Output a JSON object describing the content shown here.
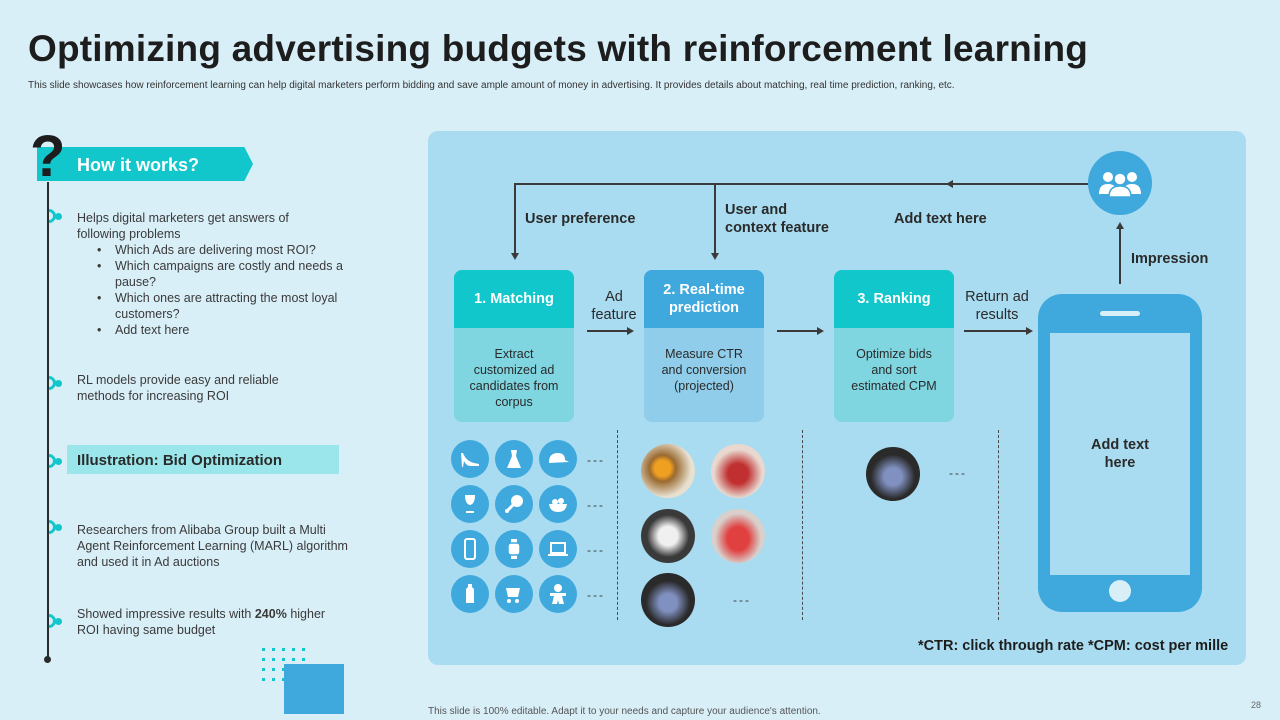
{
  "title": "Optimizing advertising budgets with reinforcement learning",
  "subtitle": "This slide showcases how reinforcement learning can help digital marketers perform bidding and save ample amount of money in advertising. It provides details about matching, real time prediction, ranking, etc.",
  "left": {
    "heading": "How it works?",
    "item1_intro": "Helps digital marketers get answers of following problems",
    "bullets": [
      "Which Ads are delivering  most ROI?",
      "Which campaigns are costly and needs a pause?",
      "Which ones are attracting the most loyal customers?",
      "Add text here"
    ],
    "item2": "RL models provide  easy and reliable methods for increasing ROI",
    "illustration_label": "Illustration:  Bid Optimization",
    "item3": "Researchers from Alibaba Group built a Multi Agent Reinforcement  Learning (MARL) algorithm and used it in Ad auctions",
    "item4_pre": "Showed impressive  results with ",
    "item4_bold": "240%",
    "item4_post": " higher ROI having  same budget"
  },
  "diagram": {
    "user_preference": "User preference",
    "user_context_1": "User and",
    "user_context_2": "context feature",
    "add_text_top": "Add  text here",
    "impression": "Impression",
    "ad_feature_1": "Ad",
    "ad_feature_2": "feature",
    "return_ad_1": "Return ad",
    "return_ad_2": "results",
    "cards": [
      {
        "head": "1. Matching",
        "body": [
          "Extract",
          "customized ad",
          "candidates from",
          "corpus"
        ]
      },
      {
        "head_1": "2. Real-time",
        "head_2": "prediction",
        "body": [
          "Measure CTR",
          "and conversion",
          "(projected)"
        ]
      },
      {
        "head": "3. Ranking",
        "body": [
          "Optimize bids",
          "and sort",
          "estimated CPM"
        ]
      }
    ],
    "dashes": "---",
    "phone_text_1": "Add  text",
    "phone_text_2": "here",
    "footnote": "*CTR: click through rate *CPM: cost per mille",
    "icons": [
      "heel-icon",
      "dress-icon",
      "cap-icon",
      "wine-glass-icon",
      "chicken-leg-icon",
      "salad-bowl-icon",
      "smartphone-icon",
      "smartwatch-icon",
      "laptop-icon",
      "baby-bottle-icon",
      "stroller-icon",
      "gingerbread-icon"
    ]
  },
  "bottom_note": "This slide is 100% editable.  Adapt it to your needs and capture your audience's attention.",
  "page_number": "28",
  "colors": {
    "teal": "#11c7cc",
    "blue": "#3fa9de",
    "panel": "#a9dcf0",
    "background": "#d9eff8"
  }
}
